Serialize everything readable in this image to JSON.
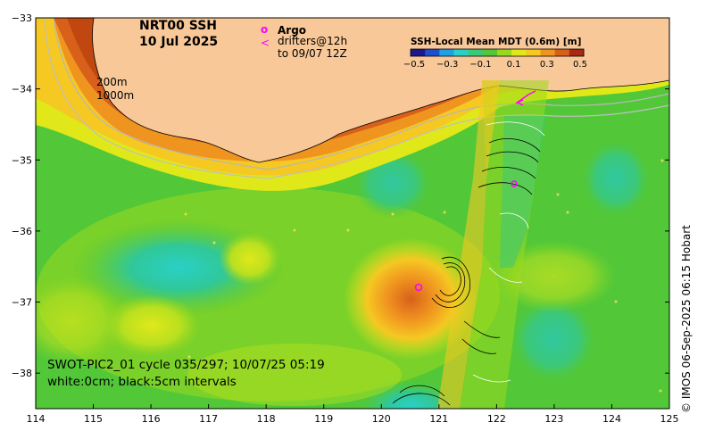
{
  "title": {
    "line1": "NRT00 SSH",
    "line2": "10 Jul 2025"
  },
  "legend": {
    "argo_symbol": "o",
    "argo_label": "Argo",
    "drifter_symbol": "<",
    "drifter_label_1": "drifters@12h",
    "drifter_label_2": "to 09/07 12Z",
    "argo_color": "#ff00ff"
  },
  "colorbar": {
    "title": "SSH-Local Mean MDT (0.6m) [m]",
    "ticks": [
      "−0.5",
      "−0.3",
      "−0.1",
      "0.1",
      "0.3",
      "0.5"
    ],
    "range": [
      -0.5,
      0.5
    ],
    "colors": [
      "#1a1a8c",
      "#1f4fd0",
      "#1fa0e6",
      "#2ad0c8",
      "#3cc878",
      "#52c838",
      "#9ad81e",
      "#e0e81a",
      "#f5c822",
      "#f09420",
      "#d8601a",
      "#a82812"
    ]
  },
  "isobaths": {
    "label_200": "200m",
    "label_1000": "1000m"
  },
  "annotation": {
    "line1": "SWOT-PIC2_01 cycle 035/297; 10/07/25 05:19",
    "line2": "white:0cm; black:5cm intervals"
  },
  "axes": {
    "x_ticks": [
      "114",
      "115",
      "116",
      "117",
      "118",
      "119",
      "120",
      "121",
      "122",
      "123",
      "124",
      "125"
    ],
    "y_ticks": [
      "−33",
      "−34",
      "−35",
      "−36",
      "−37",
      "−38"
    ],
    "lon_range": [
      114,
      125
    ],
    "lat_range": [
      -38.5,
      -33
    ]
  },
  "credit": "© IMOS 06-Sep-2025 06:15 Hobart",
  "colors": {
    "land": "#f8c898",
    "coast_band": "#c04810",
    "ocean_base": "#52c838",
    "eddy_warm": "#f09420",
    "eddy_cold": "#2ad0a8"
  }
}
